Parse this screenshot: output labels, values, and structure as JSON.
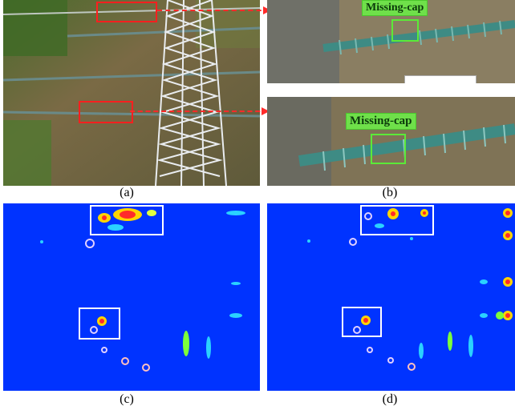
{
  "captions": {
    "a": "(a)",
    "b": "(b)",
    "c": "(c)",
    "d": "(d)"
  },
  "labels": {
    "top": "Missing-cap",
    "bottom": "Missing-cap"
  },
  "colors": {
    "red_box": "#ff1f1f",
    "green_box": "#5bea38",
    "heat_bg": "#0033ff",
    "white_box": "#ffffff"
  }
}
